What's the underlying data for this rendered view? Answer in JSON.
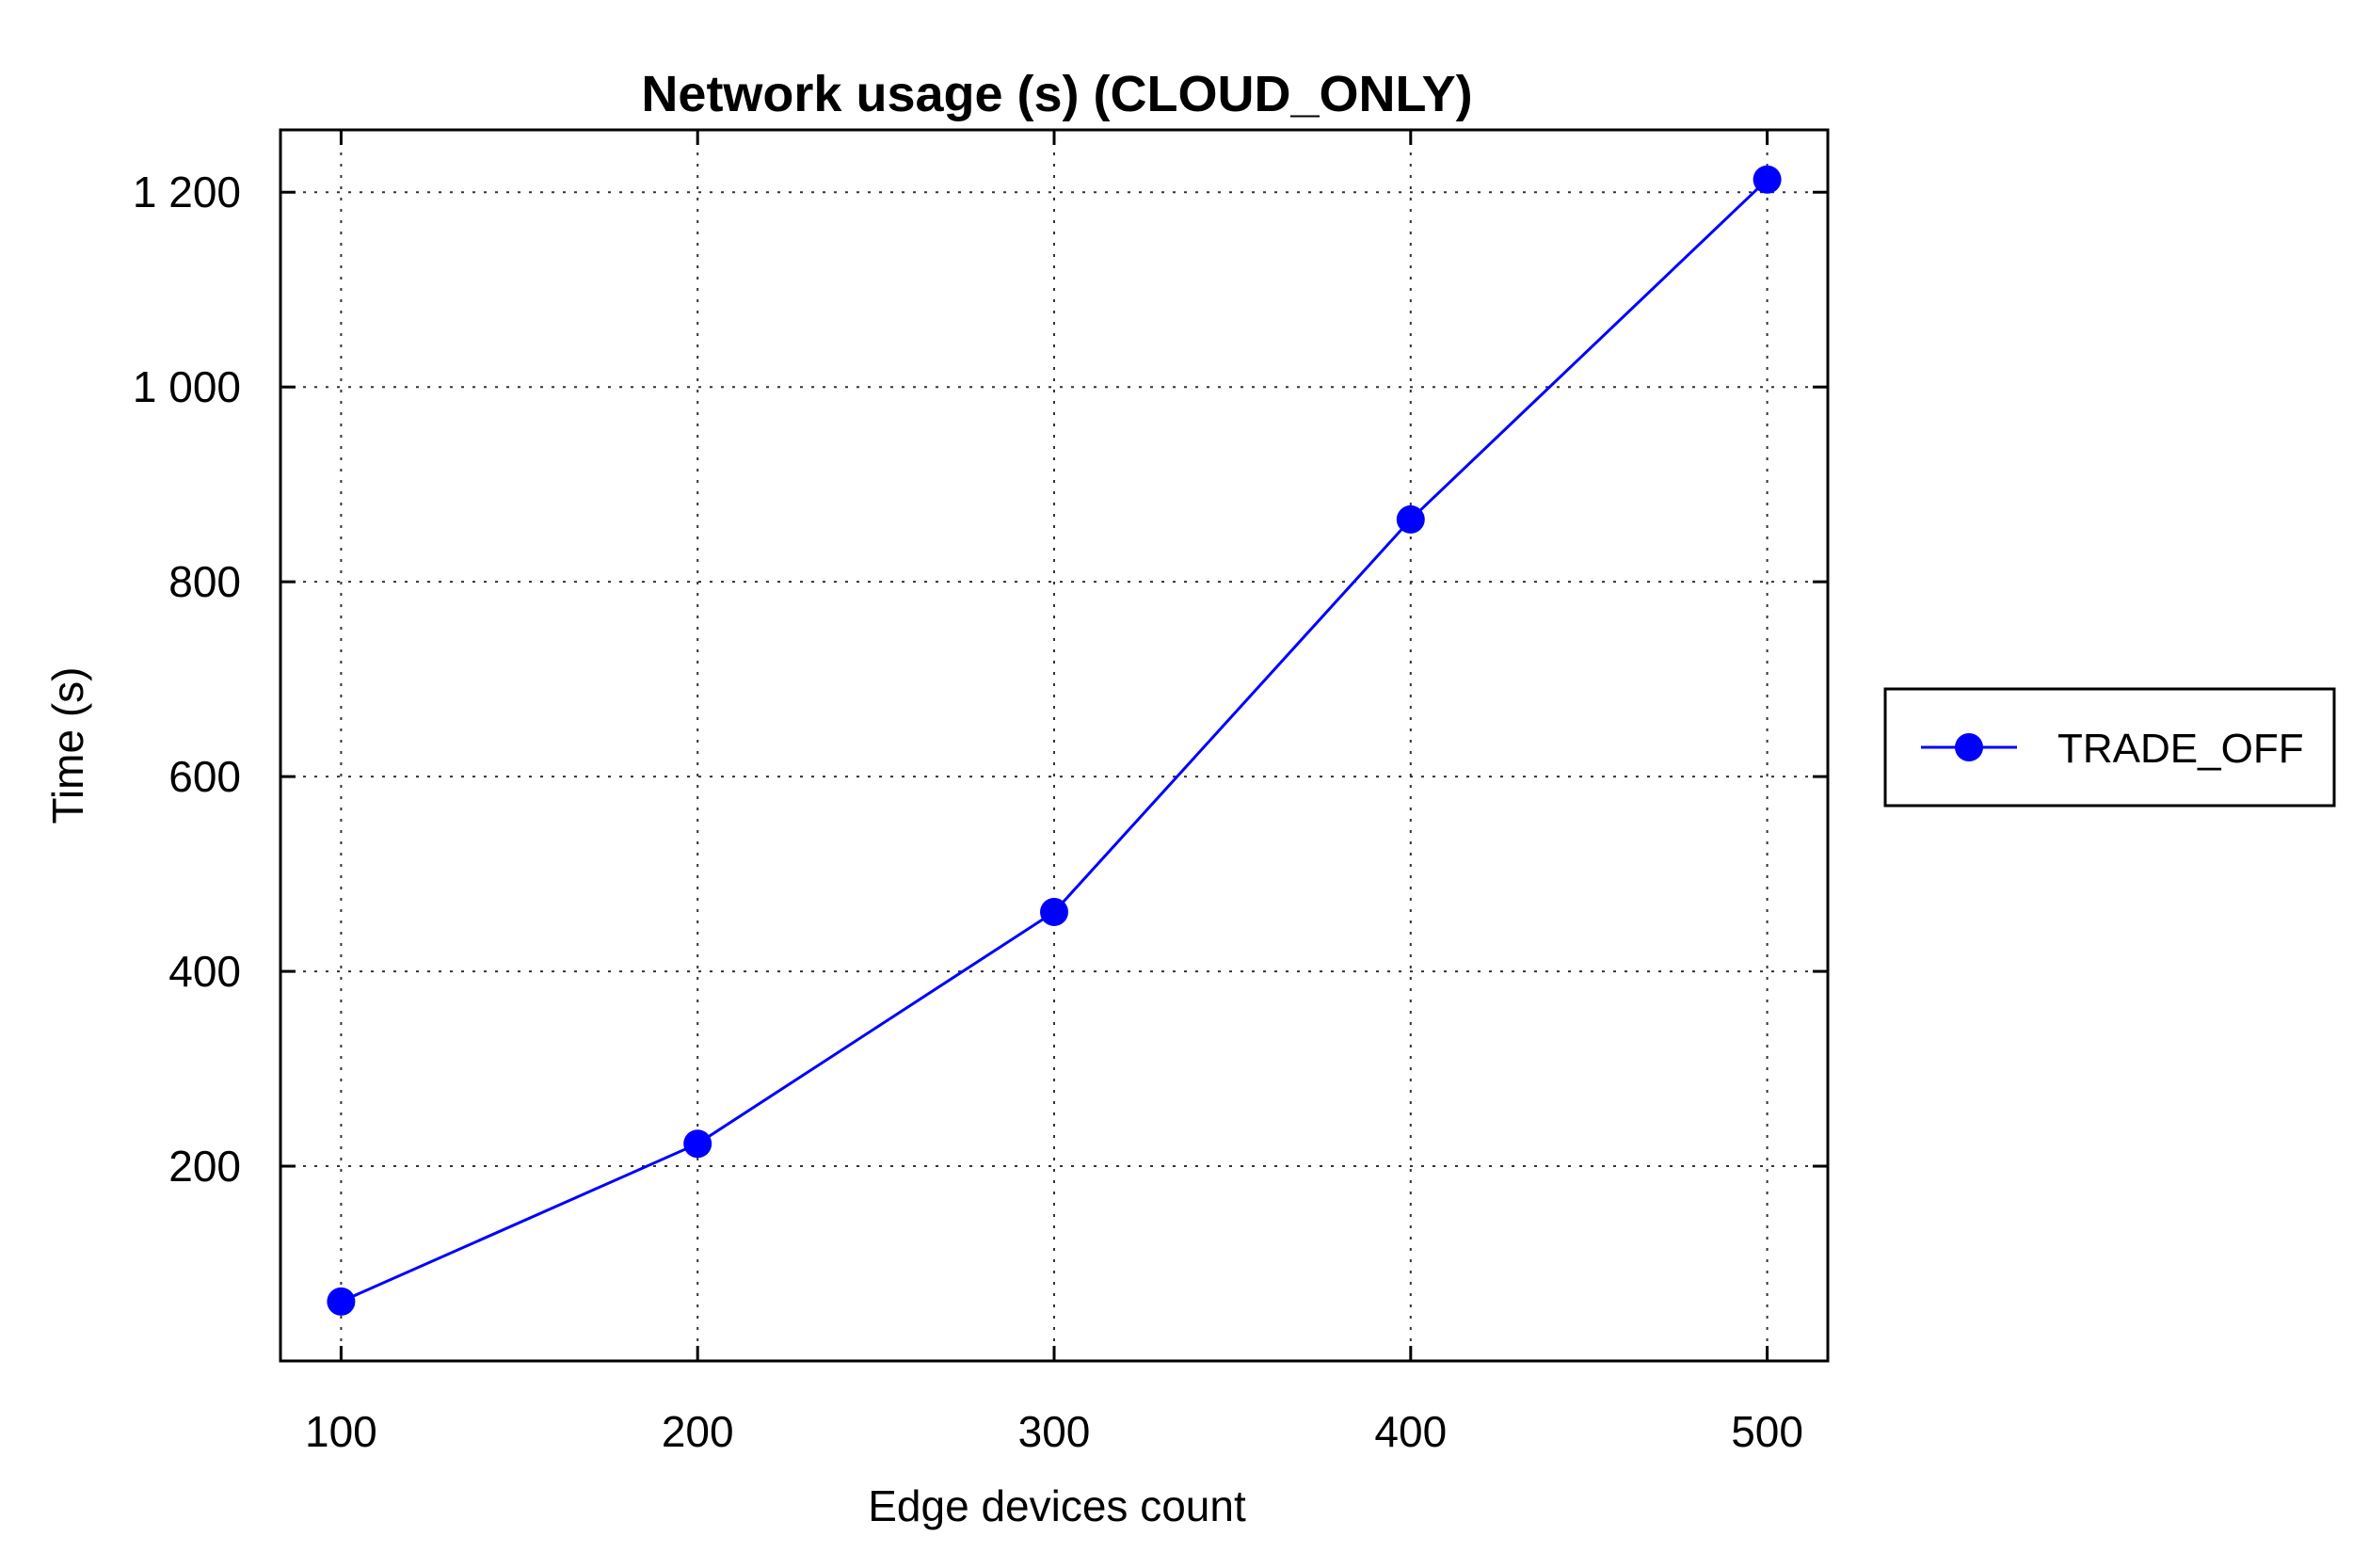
{
  "chart_data": {
    "type": "line",
    "title": "Network usage (s) (CLOUD_ONLY)",
    "xlabel": "Edge devices count",
    "ylabel": "Time (s)",
    "x": [
      100,
      200,
      300,
      400,
      500
    ],
    "x_tick_labels": [
      "100",
      "200",
      "300",
      "400",
      "500"
    ],
    "y_ticks": [
      200,
      400,
      600,
      800,
      1000,
      1200
    ],
    "y_tick_labels": [
      "200",
      "400",
      "600",
      "800",
      "1 000",
      "1 200"
    ],
    "xlim": [
      83,
      517
    ],
    "ylim": [
      0,
      1264
    ],
    "grid": true,
    "legend_position": "right",
    "series": [
      {
        "name": "TRADE_OFF",
        "color": "#0000ff",
        "marker": "circle",
        "values": [
          61,
          223,
          461,
          864,
          1213
        ]
      }
    ]
  }
}
